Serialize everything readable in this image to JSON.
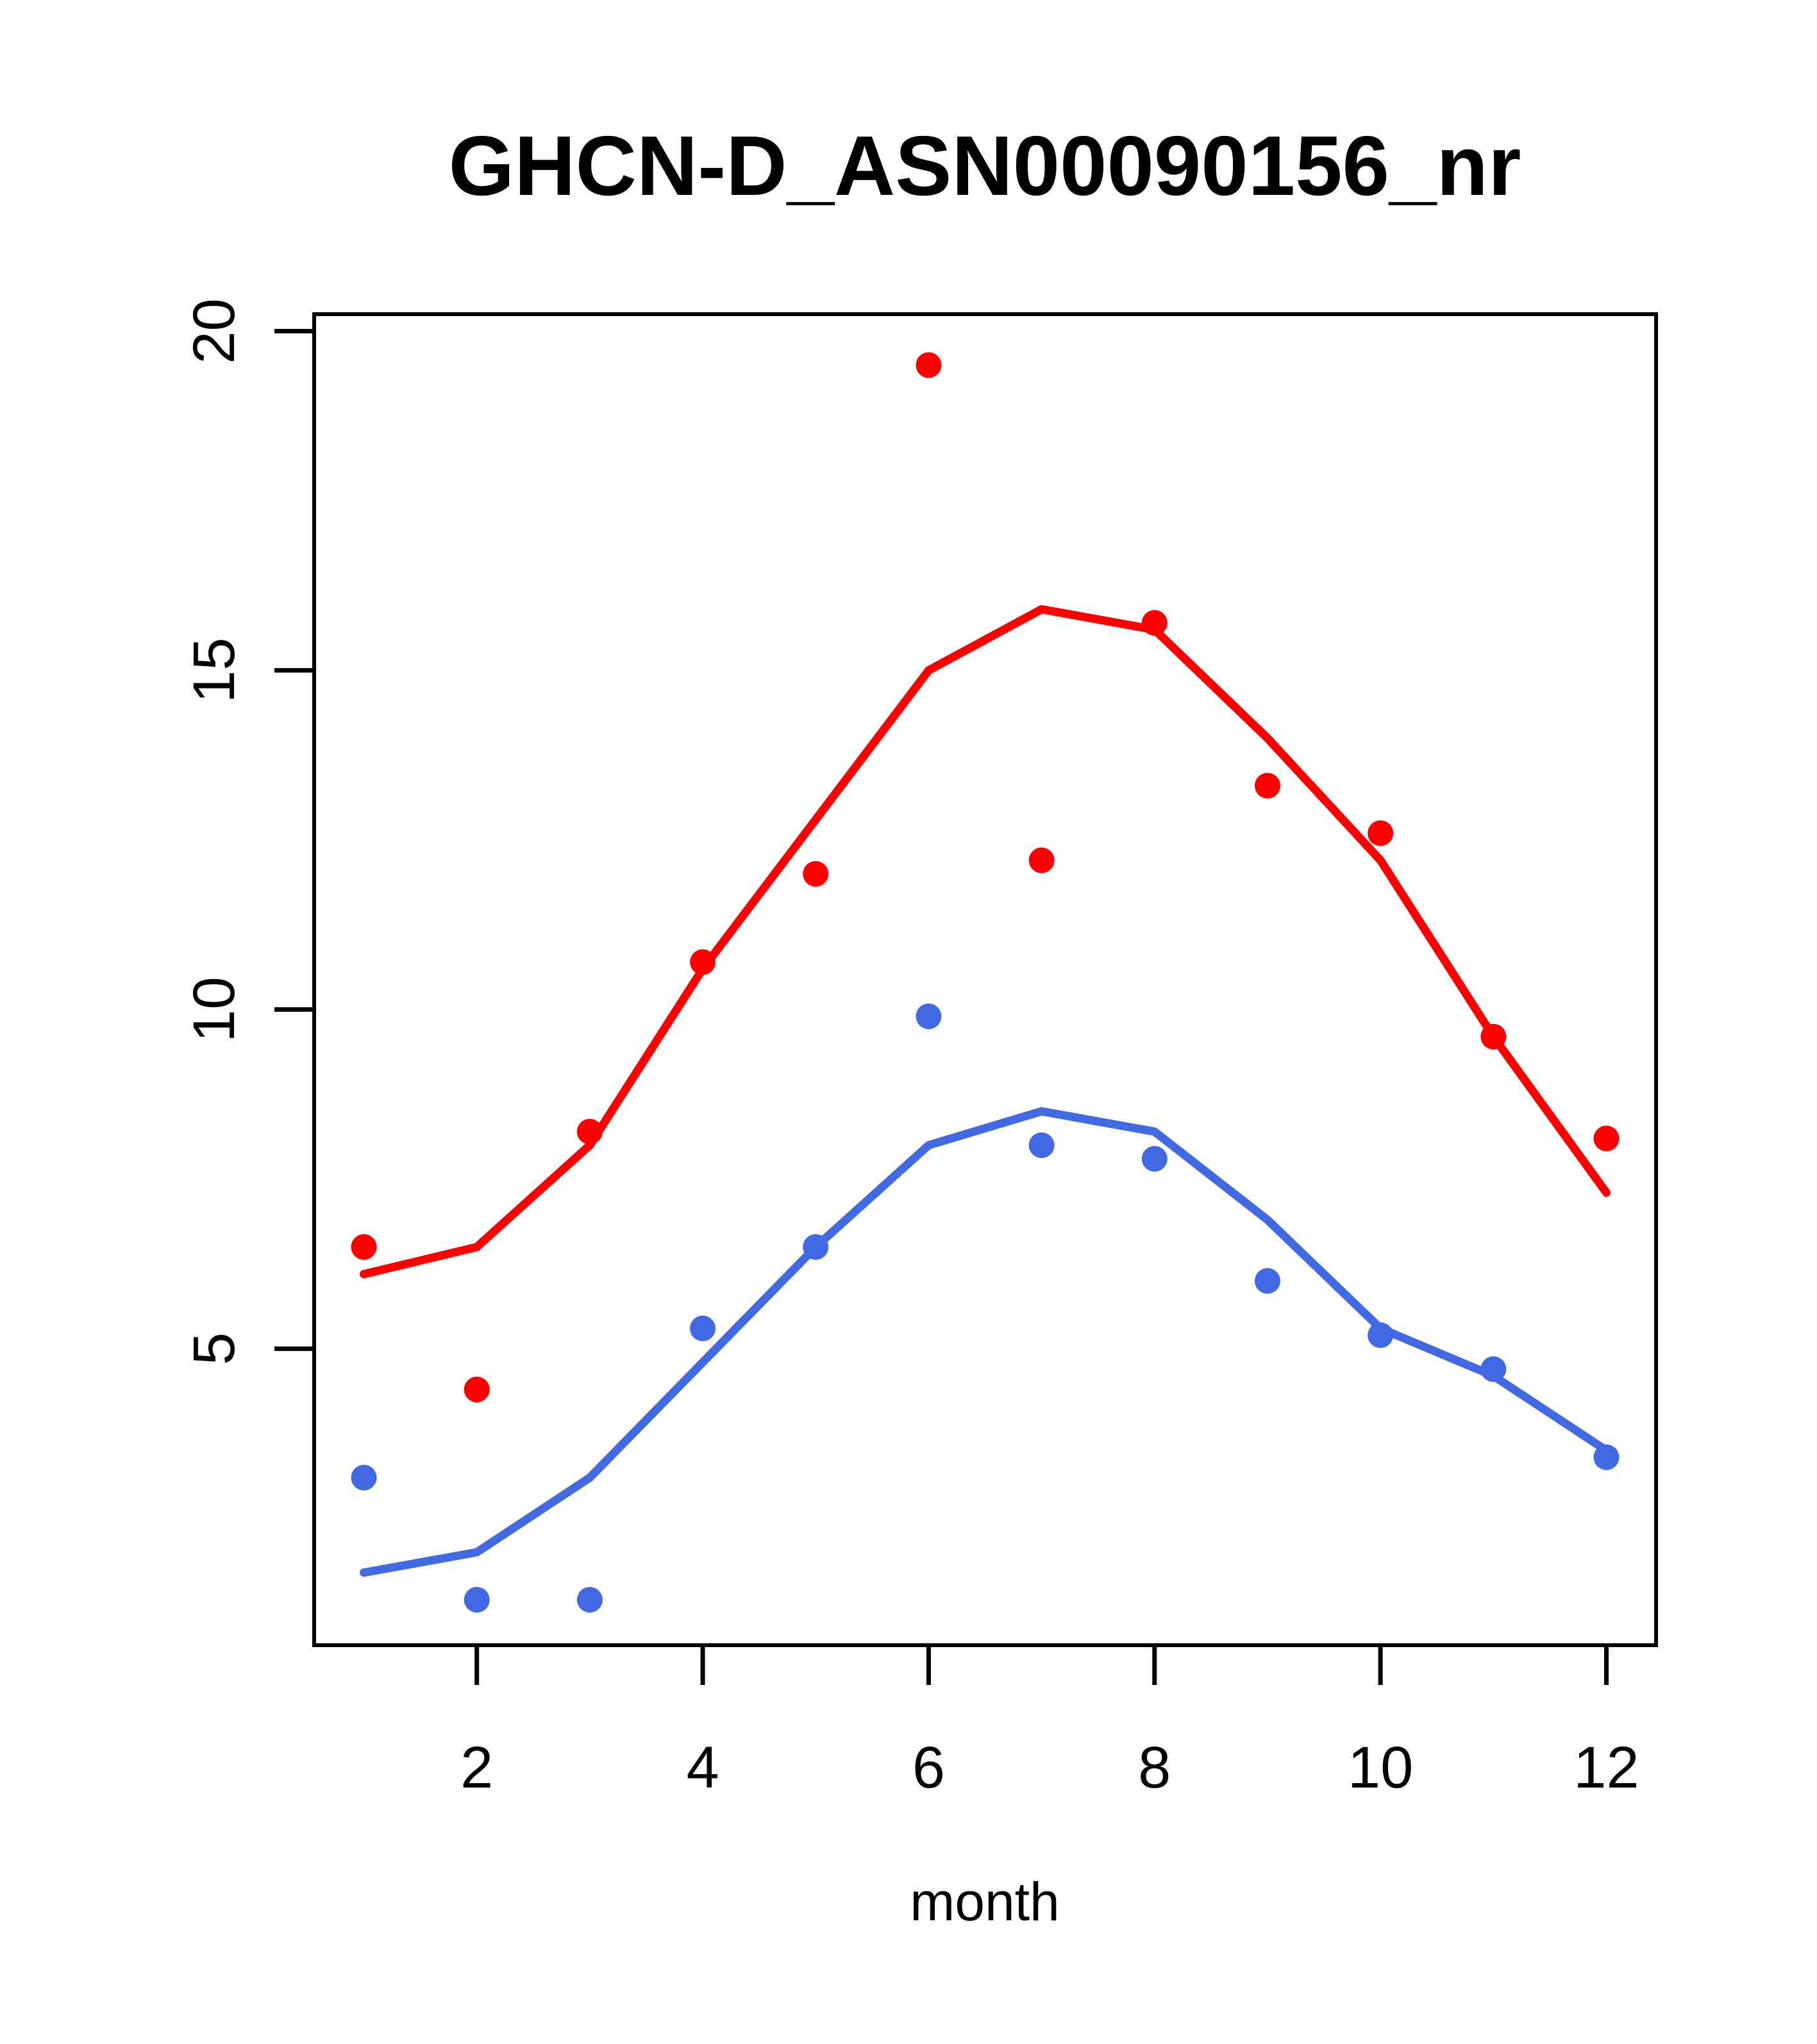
{
  "chart_data": {
    "type": "scatter",
    "title": "GHCN-D_ASN00090156_nr",
    "xlabel": "month",
    "ylabel": "",
    "x": [
      1,
      2,
      3,
      4,
      5,
      6,
      7,
      8,
      9,
      10,
      11,
      12
    ],
    "xlim": [
      0.56,
      12.44
    ],
    "ylim": [
      0.63,
      20.25
    ],
    "x_ticks": [
      2,
      4,
      6,
      8,
      10,
      12
    ],
    "y_ticks": [
      5,
      10,
      15,
      20
    ],
    "grid": false,
    "legend": "none",
    "colors": {
      "red_series": "#ff0000",
      "blue_series": "#4169e1",
      "axis": "#000000"
    },
    "series": [
      {
        "name": "red-trend",
        "kind": "line",
        "color": "#ff0000",
        "values": [
          6.1,
          6.5,
          8.0,
          10.6,
          12.8,
          15.0,
          15.9,
          15.6,
          14.0,
          12.2,
          9.6,
          7.3
        ]
      },
      {
        "name": "blue-trend",
        "kind": "line",
        "color": "#4169e1",
        "values": [
          1.7,
          2.0,
          3.1,
          4.8,
          6.5,
          8.0,
          8.5,
          8.2,
          6.9,
          5.3,
          4.6,
          3.5
        ]
      },
      {
        "name": "red-points",
        "kind": "points",
        "color": "#ff0000",
        "values": [
          6.5,
          4.4,
          8.2,
          10.7,
          12.0,
          19.5,
          12.2,
          15.7,
          13.3,
          12.6,
          9.6,
          8.1
        ]
      },
      {
        "name": "blue-points",
        "kind": "points",
        "color": "#4169e1",
        "values": [
          3.1,
          1.3,
          1.3,
          5.3,
          6.5,
          9.9,
          8.0,
          7.8,
          6.0,
          5.2,
          4.7,
          3.4
        ]
      }
    ]
  }
}
